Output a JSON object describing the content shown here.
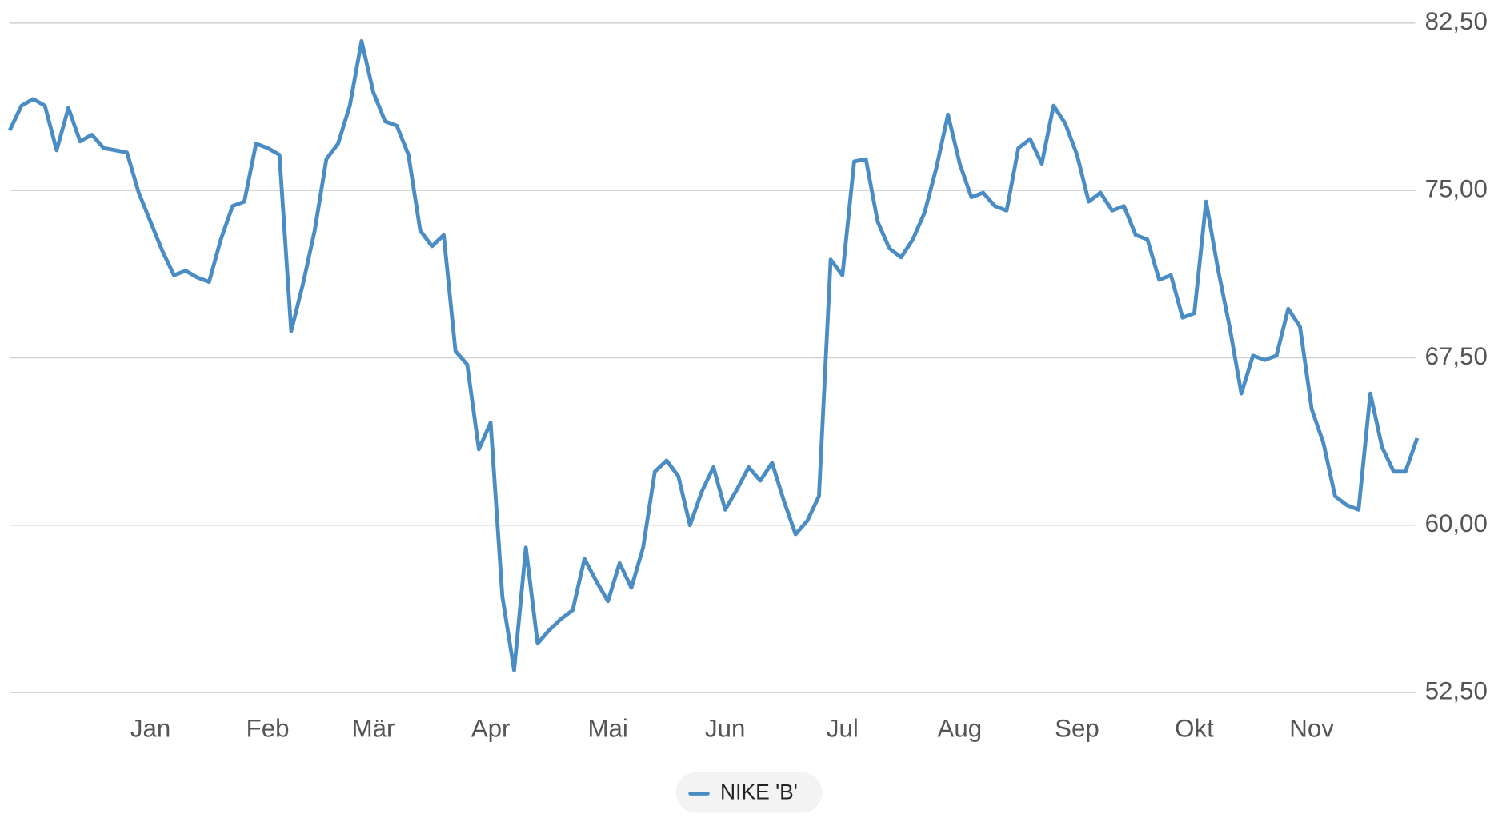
{
  "chart_data": {
    "type": "line",
    "categories": [
      null,
      null,
      null,
      null,
      null,
      null,
      null,
      null,
      null,
      null,
      null,
      null,
      "Jan",
      null,
      null,
      null,
      null,
      null,
      null,
      null,
      null,
      null,
      "Feb",
      null,
      null,
      null,
      null,
      null,
      null,
      null,
      null,
      "Mär",
      null,
      null,
      null,
      null,
      null,
      null,
      null,
      null,
      null,
      "Apr",
      null,
      null,
      null,
      null,
      null,
      null,
      null,
      null,
      null,
      "Mai",
      null,
      null,
      null,
      null,
      null,
      null,
      null,
      null,
      null,
      "Jun",
      null,
      null,
      null,
      null,
      null,
      null,
      null,
      null,
      null,
      "Jul",
      null,
      null,
      null,
      null,
      null,
      null,
      null,
      null,
      null,
      "Aug",
      null,
      null,
      null,
      null,
      null,
      null,
      null,
      null,
      null,
      "Sep",
      null,
      null,
      null,
      null,
      null,
      null,
      null,
      null,
      null,
      "Okt",
      null,
      null,
      null,
      null,
      null,
      null,
      null,
      null,
      null,
      "Nov",
      null,
      null,
      null,
      null,
      null,
      null,
      null,
      null,
      null
    ],
    "series": [
      {
        "name": "NIKE 'B'",
        "color": "#4a8cc4",
        "values": [
          77.7,
          78.8,
          79.1,
          78.8,
          76.8,
          78.7,
          77.2,
          77.5,
          76.9,
          76.8,
          76.7,
          74.9,
          73.6,
          72.3,
          71.2,
          71.4,
          71.1,
          70.9,
          72.8,
          74.3,
          74.5,
          77.1,
          76.9,
          76.6,
          68.7,
          70.8,
          73.2,
          76.4,
          77.1,
          78.8,
          81.7,
          79.4,
          78.1,
          77.9,
          76.6,
          73.2,
          72.5,
          73.0,
          67.8,
          67.2,
          63.4,
          64.6,
          56.8,
          53.5,
          59.0,
          54.7,
          55.3,
          55.8,
          56.2,
          58.5,
          57.5,
          56.6,
          58.3,
          57.2,
          59.0,
          62.4,
          62.9,
          62.2,
          60.0,
          61.5,
          62.6,
          60.7,
          61.6,
          62.6,
          62.0,
          62.8,
          61.1,
          59.6,
          60.2,
          61.3,
          71.9,
          71.2,
          76.3,
          76.4,
          73.6,
          72.4,
          72.0,
          72.8,
          74.0,
          76.0,
          78.4,
          76.2,
          74.7,
          74.9,
          74.3,
          74.1,
          76.9,
          77.3,
          76.2,
          78.8,
          78.0,
          76.6,
          74.5,
          74.9,
          74.1,
          74.3,
          73.0,
          72.8,
          71.0,
          71.2,
          69.3,
          69.5,
          74.5,
          71.5,
          68.9,
          65.9,
          67.6,
          67.4,
          67.6,
          69.7,
          68.9,
          65.2,
          63.7,
          61.3,
          60.9,
          60.7,
          65.9,
          63.5,
          62.4,
          62.4,
          63.9
        ]
      }
    ],
    "ylim": [
      52.5,
      82.5
    ],
    "yticks": [
      {
        "value": 52.5,
        "label": "52,50"
      },
      {
        "value": 60,
        "label": "60,00"
      },
      {
        "value": 67.5,
        "label": "67,50"
      },
      {
        "value": 75,
        "label": "75,00"
      },
      {
        "value": 82.5,
        "label": "82,50"
      }
    ],
    "grid": true
  }
}
